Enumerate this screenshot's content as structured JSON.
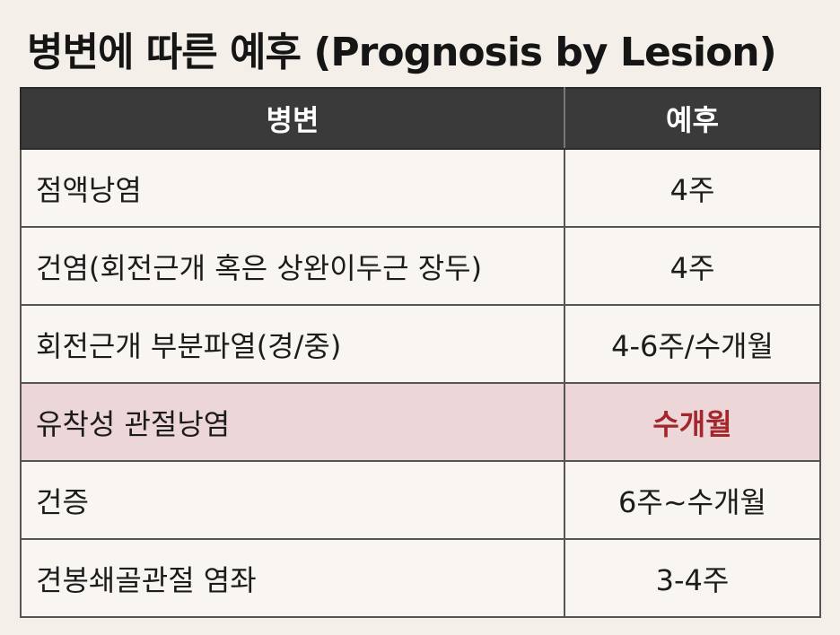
{
  "title": "병변에 따른 예후 (Prognosis by Lesion)",
  "table": {
    "headers": [
      "병변",
      "예후"
    ],
    "rows": [
      {
        "lesion": "점액낭염",
        "prognosis": "4주"
      },
      {
        "lesion": "건염(회전근개 혹은 상완이두근 장두)",
        "prognosis": "4주"
      },
      {
        "lesion": "회전근개 부분파열(경/중)",
        "prognosis": "4-6주/수개월"
      },
      {
        "lesion": "유착성 관절낭염",
        "prognosis": "수개월"
      },
      {
        "lesion": "건증",
        "prognosis": "6주~수개월"
      },
      {
        "lesion": "견봉쇄골관절 염좌",
        "prognosis": "3-4주"
      }
    ],
    "highlight_color": "#ecd6d8",
    "highlight_text_color": "#a3262c"
  }
}
